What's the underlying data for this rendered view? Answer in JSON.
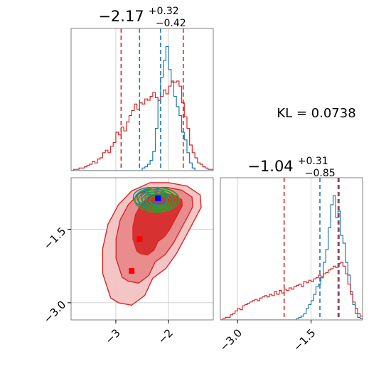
{
  "chart_data": [
    {
      "type": "histogram",
      "panel": "marginal-x",
      "title": {
        "median": "−2.17",
        "plus": "+0.32",
        "minus": "−0.42"
      },
      "xlim": [
        -3.85,
        -1.15
      ],
      "grid": true,
      "series": [
        {
          "name": "",
          "color": "#1f77b4",
          "x_start": -3.85,
          "bin_width": 0.05,
          "values": [
            0,
            0,
            0,
            0,
            0,
            0,
            0,
            0,
            0,
            0,
            0,
            0,
            0,
            0,
            0,
            0,
            0,
            0,
            0,
            0,
            0,
            0,
            0,
            0,
            0,
            0,
            0,
            0.02,
            0.03,
            0.05,
            0.08,
            0.15,
            0.33,
            0.55,
            0.73,
            0.86,
            0.97,
            0.79,
            0.69,
            0.58,
            0.5,
            0.43,
            0.3,
            0.24,
            0.14,
            0.06,
            0.02,
            0,
            0,
            0,
            0,
            0,
            0,
            0,
            0
          ]
        },
        {
          "name": "",
          "color": "#d62728",
          "x_start": -3.85,
          "bin_width": 0.05,
          "values": [
            0,
            0.01,
            0.01,
            0.02,
            0.02,
            0.03,
            0.04,
            0.05,
            0.07,
            0.06,
            0.09,
            0.1,
            0.14,
            0.16,
            0.14,
            0.19,
            0.22,
            0.3,
            0.28,
            0.34,
            0.31,
            0.38,
            0.43,
            0.47,
            0.52,
            0.48,
            0.53,
            0.52,
            0.56,
            0.55,
            0.58,
            0.61,
            0.57,
            0.55,
            0.58,
            0.63,
            0.6,
            0.66,
            0.7,
            0.69,
            0.7,
            0.66,
            0.53,
            0.42,
            0.33,
            0.2,
            0.14,
            0.1,
            0.06,
            0.05,
            0.03,
            0.02,
            0.01,
            0.01,
            0
          ]
        }
      ],
      "vlines": [
        {
          "x": -2.9,
          "color": "#d62728"
        },
        {
          "x": -2.55,
          "color": "#1f77b4"
        },
        {
          "x": -2.15,
          "color": "#1f77b4"
        },
        {
          "x": -1.72,
          "color": "#d62728"
        }
      ],
      "xticks": []
    },
    {
      "type": "contour",
      "panel": "joint",
      "xlim": [
        -3.85,
        -1.15
      ],
      "ylim": [
        -3.35,
        -0.45
      ],
      "grid": true,
      "xticks": [
        {
          "value": -3,
          "label": "−3"
        },
        {
          "value": -2,
          "label": "−2"
        }
      ],
      "yticks": [
        {
          "value": -1.5,
          "label": "−1.5"
        },
        {
          "value": -3.0,
          "label": "−3.0"
        }
      ],
      "red_levels": [
        {
          "fill": "#f3c2c2",
          "opacity": 0.95,
          "scale": 1.0
        },
        {
          "fill": "#e8898b",
          "opacity": 0.95,
          "scale": 0.78
        },
        {
          "fill": "#d62728",
          "opacity": 0.9,
          "scale": 0.5
        }
      ],
      "blue_contour": {
        "color": "#1f77b4",
        "center": [
          -2.35,
          -0.85
        ],
        "rx": 0.32,
        "ry": 0.2,
        "levels": [
          1.0,
          0.8,
          0.6,
          0.4
        ]
      },
      "green_contour": {
        "color": "#2ca02c",
        "center": [
          -2.22,
          -0.9
        ],
        "rx": 0.42,
        "ry": 0.25,
        "levels": [
          1.0,
          0.85,
          0.7,
          0.55,
          0.4
        ]
      },
      "markers": [
        {
          "x": -2.2,
          "y": -0.87,
          "color": "#0000ff"
        },
        {
          "x": -2.55,
          "y": -1.7,
          "color": "#ff0000"
        },
        {
          "x": -2.7,
          "y": -2.35,
          "color": "#ff0000"
        }
      ]
    },
    {
      "type": "histogram",
      "panel": "marginal-y",
      "title": {
        "median": "−1.04",
        "plus": "+0.31",
        "minus": "−0.85"
      },
      "xlim": [
        -3.35,
        -0.45
      ],
      "grid": true,
      "xticks": [
        {
          "value": -3.0,
          "label": "−3.0"
        },
        {
          "value": -1.5,
          "label": "−1.5"
        }
      ],
      "series": [
        {
          "name": "",
          "color": "#1f77b4",
          "x_start": -3.35,
          "bin_width": 0.05,
          "values": [
            0,
            0,
            0,
            0,
            0,
            0,
            0,
            0,
            0,
            0,
            0,
            0,
            0,
            0,
            0,
            0,
            0,
            0,
            0,
            0,
            0,
            0,
            0,
            0,
            0,
            0,
            0,
            0,
            0,
            0,
            0,
            0.01,
            0.02,
            0.03,
            0.05,
            0.09,
            0.12,
            0.15,
            0.2,
            0.26,
            0.28,
            0.33,
            0.45,
            0.55,
            0.72,
            0.9,
            0.97,
            0.8,
            0.85,
            0.66,
            0.6,
            0.45,
            0.35,
            0.22,
            0.12,
            0.05,
            0.02,
            0.01,
            0
          ]
        },
        {
          "name": "",
          "color": "#d62728",
          "x_start": -3.35,
          "bin_width": 0.05,
          "values": [
            0,
            0.01,
            0.02,
            0.02,
            0.04,
            0.05,
            0.07,
            0.09,
            0.08,
            0.11,
            0.12,
            0.13,
            0.14,
            0.15,
            0.16,
            0.15,
            0.17,
            0.18,
            0.19,
            0.18,
            0.2,
            0.19,
            0.22,
            0.2,
            0.23,
            0.21,
            0.24,
            0.23,
            0.25,
            0.24,
            0.26,
            0.27,
            0.28,
            0.26,
            0.3,
            0.29,
            0.31,
            0.3,
            0.32,
            0.33,
            0.35,
            0.34,
            0.36,
            0.37,
            0.39,
            0.4,
            0.42,
            0.41,
            0.44,
            0.45,
            0.42,
            0.36,
            0.28,
            0.2,
            0.14,
            0.09,
            0.05,
            0.03,
            0.01
          ]
        }
      ],
      "vlines": [
        {
          "x": -2.05,
          "color": "#d62728"
        },
        {
          "x": -1.32,
          "color": "#1f77b4"
        },
        {
          "x": -0.95,
          "color": "#1f77b4"
        },
        {
          "x": -0.93,
          "color": "#d62728"
        }
      ]
    }
  ],
  "annotation": {
    "kl_text": "KL = 0.0738"
  },
  "colors": {
    "blue": "#1f77b4",
    "red": "#d62728",
    "green": "#2ca02c",
    "frame": "#7f7f7f",
    "grid": "#cccccc"
  }
}
